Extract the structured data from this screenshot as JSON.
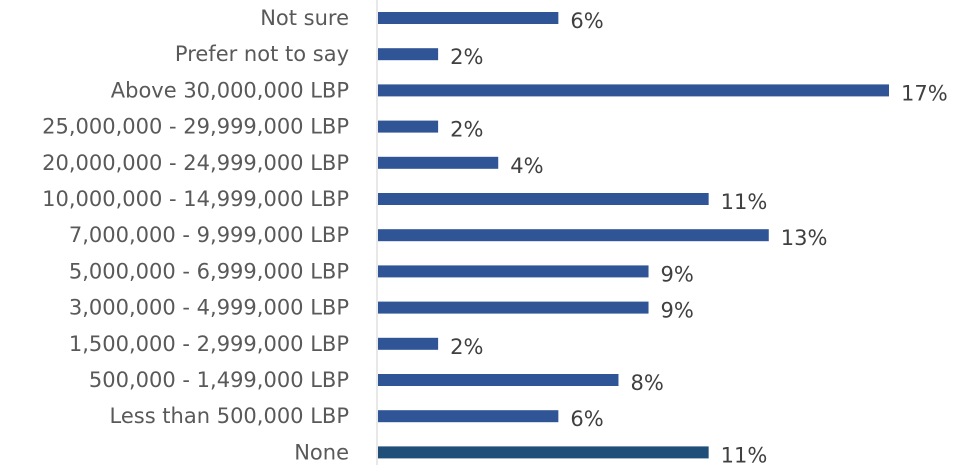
{
  "chart_data": {
    "type": "bar",
    "orientation": "horizontal",
    "title": "",
    "xlabel": "",
    "ylabel": "",
    "xlim": [
      0,
      17
    ],
    "grid": false,
    "legend": "none",
    "categories": [
      "Not sure",
      "Prefer not to say",
      "Above 30,000,000 LBP",
      "25,000,000 - 29,999,000 LBP",
      "20,000,000 - 24,999,000 LBP",
      "10,000,000 - 14,999,000 LBP",
      "7,000,000 - 9,999,000 LBP",
      "5,000,000 - 6,999,000 LBP",
      "3,000,000 - 4,999,000 LBP",
      "1,500,000 - 2,999,000 LBP",
      "500,000 - 1,499,000 LBP",
      "Less than 500,000 LBP",
      "None"
    ],
    "values": [
      6,
      2,
      17,
      2,
      4,
      11,
      13,
      9,
      9,
      2,
      8,
      6,
      11
    ],
    "data_labels": [
      "6%",
      "2%",
      "17%",
      "2%",
      "4%",
      "11%",
      "13%",
      "9%",
      "9%",
      "2%",
      "8%",
      "6%",
      "11%"
    ],
    "colors": {
      "bar": "#2f5597",
      "bar_last": "#1f4e79",
      "axis": "#d9d9d9",
      "category_text": "#595959",
      "value_text": "#404040"
    }
  }
}
